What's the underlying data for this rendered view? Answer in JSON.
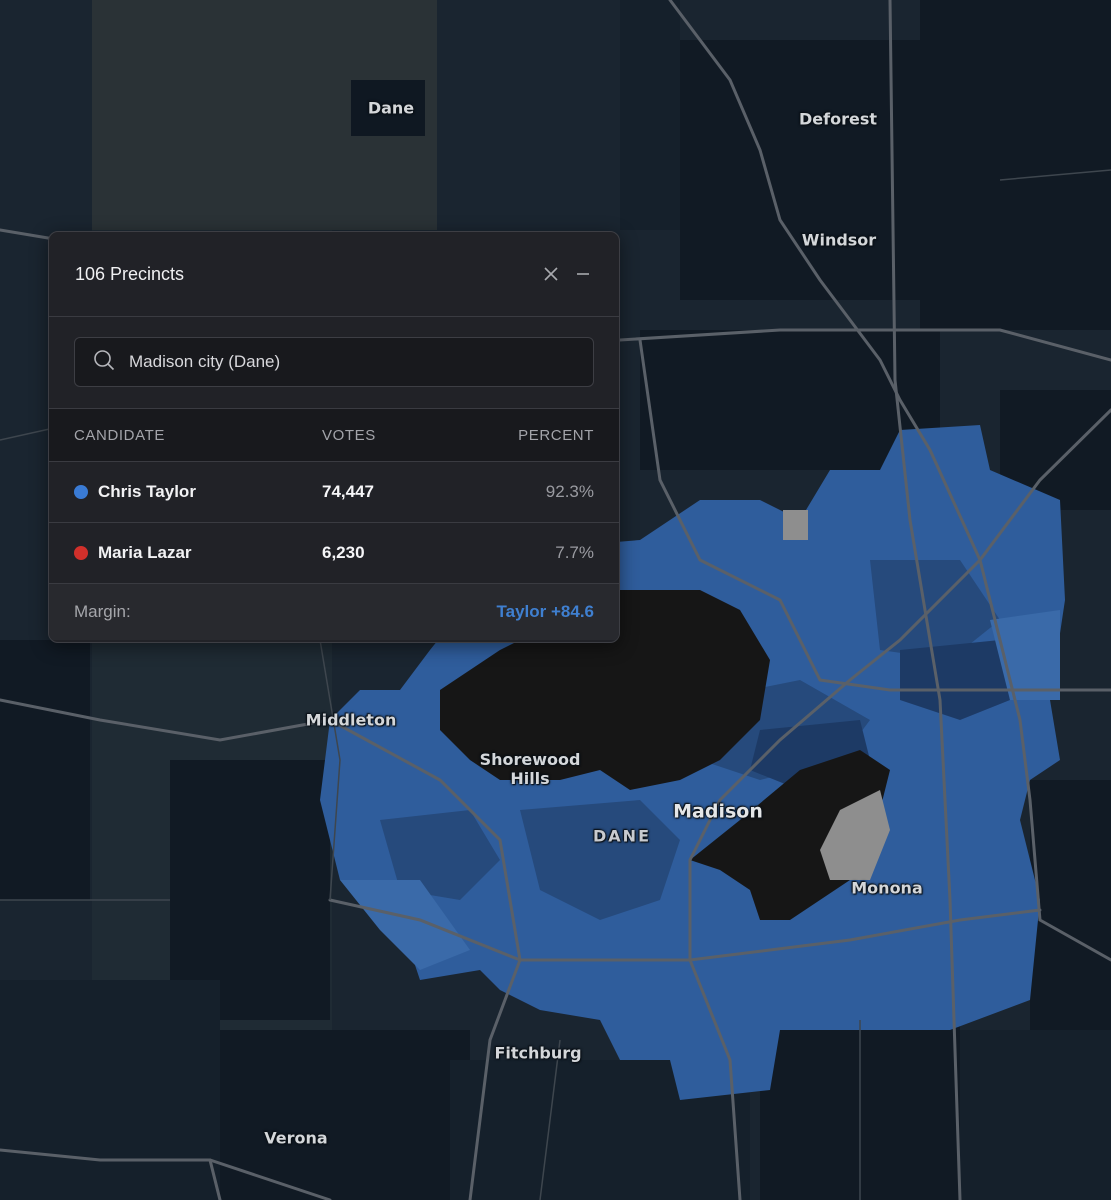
{
  "panel": {
    "title": "106 Precincts",
    "search_value": "Madison city (Dane)",
    "columns": {
      "candidate": "CANDIDATE",
      "votes": "VOTES",
      "percent": "PERCENT"
    },
    "rows": [
      {
        "name": "Chris Taylor",
        "votes": "74,447",
        "percent": "92.3%",
        "color": "#3a7bd5"
      },
      {
        "name": "Maria Lazar",
        "votes": "6,230",
        "percent": "7.7%",
        "color": "#d1302b"
      }
    ],
    "margin_label": "Margin:",
    "margin_value": "Taylor +84.6"
  },
  "map": {
    "labels": {
      "dane_top": "Dane",
      "deforest": "Deforest",
      "windsor": "Windsor",
      "middleton": "Middleton",
      "shorewood": "Shorewood\nHills",
      "madison": "Madison",
      "dane_county": "DANE",
      "monona": "Monona",
      "fitchburg": "Fitchburg",
      "verona": "Verona"
    },
    "colors": {
      "background": "#1a2530",
      "precinct_dark": "#111a24",
      "precinct_blue": "#2f5d9c",
      "precinct_mid": "#264a7c",
      "lake": "#161616",
      "unknown": "#8e8e8e",
      "road": "#5a6068"
    }
  }
}
